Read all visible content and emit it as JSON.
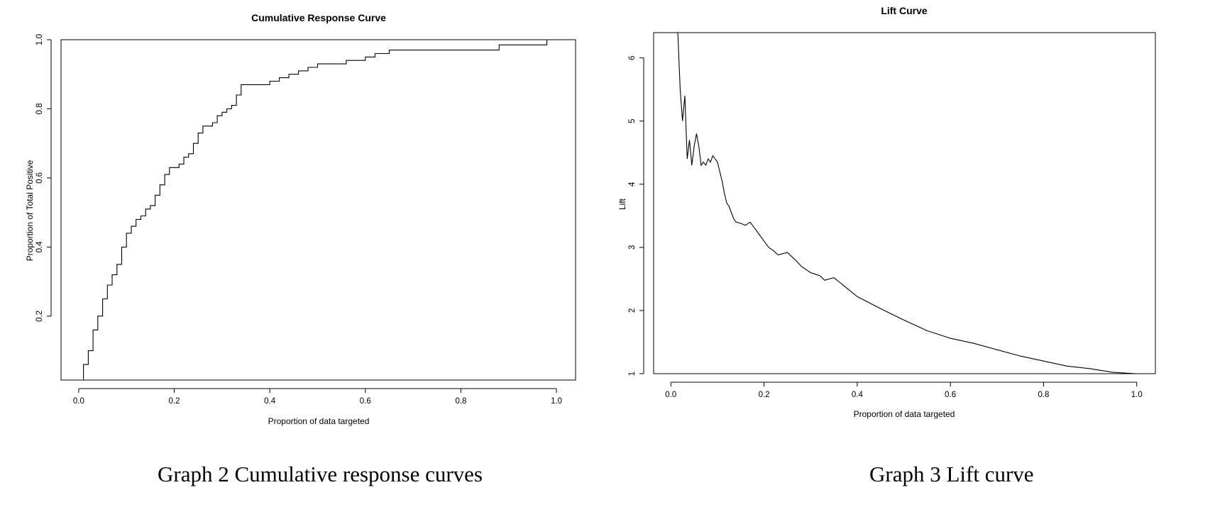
{
  "chart_data": [
    {
      "type": "line",
      "title": "Cumulative Response Curve",
      "xlabel": "Proportion of data targeted",
      "ylabel": "Proportion of Total Positive",
      "xlim": [
        -0.037,
        1.04
      ],
      "ylim": [
        0.015,
        1.0
      ],
      "xticks": [
        "0.0",
        "0.2",
        "0.4",
        "0.6",
        "0.8",
        "1.0"
      ],
      "yticks": [
        "0.2",
        "0.4",
        "0.6",
        "0.8",
        "1.0"
      ],
      "grid": false,
      "step": true,
      "series": [
        {
          "x": [
            0.0,
            0.01,
            0.02,
            0.03,
            0.04,
            0.05,
            0.06,
            0.07,
            0.08,
            0.09,
            0.1,
            0.11,
            0.12,
            0.13,
            0.14,
            0.15,
            0.16,
            0.17,
            0.18,
            0.19,
            0.2,
            0.21,
            0.22,
            0.23,
            0.24,
            0.25,
            0.26,
            0.27,
            0.28,
            0.29,
            0.3,
            0.31,
            0.32,
            0.33,
            0.34,
            0.35,
            0.36,
            0.38,
            0.4,
            0.42,
            0.44,
            0.46,
            0.48,
            0.5,
            0.52,
            0.54,
            0.56,
            0.58,
            0.6,
            0.62,
            0.65,
            0.7,
            0.75,
            0.8,
            0.85,
            0.88,
            0.9,
            0.95,
            0.98,
            1.0
          ],
          "values": [
            0.015,
            0.06,
            0.1,
            0.16,
            0.2,
            0.25,
            0.29,
            0.32,
            0.35,
            0.4,
            0.44,
            0.46,
            0.48,
            0.49,
            0.51,
            0.52,
            0.55,
            0.58,
            0.61,
            0.63,
            0.63,
            0.64,
            0.66,
            0.67,
            0.7,
            0.73,
            0.75,
            0.75,
            0.76,
            0.78,
            0.79,
            0.8,
            0.81,
            0.84,
            0.87,
            0.87,
            0.87,
            0.87,
            0.88,
            0.89,
            0.9,
            0.91,
            0.92,
            0.93,
            0.93,
            0.93,
            0.94,
            0.94,
            0.95,
            0.96,
            0.97,
            0.97,
            0.97,
            0.97,
            0.97,
            0.985,
            0.985,
            0.985,
            1.0,
            1.0
          ]
        }
      ]
    },
    {
      "type": "line",
      "title": "Lift Curve",
      "xlabel": "Proportion of data targeted",
      "ylabel": "Lift",
      "xlim": [
        -0.037,
        1.04
      ],
      "ylim": [
        1.0,
        6.4
      ],
      "xticks": [
        "0.0",
        "0.2",
        "0.4",
        "0.6",
        "0.8",
        "1.0"
      ],
      "yticks": [
        "1",
        "2",
        "3",
        "4",
        "5",
        "6"
      ],
      "grid": false,
      "step": false,
      "series": [
        {
          "x": [
            0.015,
            0.02,
            0.025,
            0.03,
            0.035,
            0.04,
            0.045,
            0.05,
            0.055,
            0.06,
            0.065,
            0.07,
            0.075,
            0.08,
            0.085,
            0.09,
            0.095,
            0.1,
            0.105,
            0.11,
            0.115,
            0.12,
            0.125,
            0.13,
            0.135,
            0.14,
            0.15,
            0.16,
            0.17,
            0.18,
            0.19,
            0.2,
            0.21,
            0.22,
            0.23,
            0.24,
            0.25,
            0.26,
            0.27,
            0.28,
            0.3,
            0.32,
            0.33,
            0.34,
            0.35,
            0.37,
            0.4,
            0.45,
            0.5,
            0.55,
            0.6,
            0.65,
            0.7,
            0.75,
            0.8,
            0.85,
            0.9,
            0.95,
            1.0
          ],
          "values": [
            6.4,
            5.5,
            5.0,
            5.4,
            4.4,
            4.7,
            4.3,
            4.6,
            4.8,
            4.6,
            4.3,
            4.35,
            4.3,
            4.4,
            4.35,
            4.45,
            4.4,
            4.35,
            4.2,
            4.05,
            3.85,
            3.7,
            3.65,
            3.55,
            3.45,
            3.4,
            3.38,
            3.35,
            3.4,
            3.3,
            3.2,
            3.1,
            3.0,
            2.95,
            2.88,
            2.9,
            2.92,
            2.85,
            2.78,
            2.7,
            2.6,
            2.55,
            2.48,
            2.5,
            2.52,
            2.4,
            2.22,
            2.03,
            1.85,
            1.68,
            1.56,
            1.48,
            1.38,
            1.28,
            1.2,
            1.12,
            1.08,
            1.02,
            1.0
          ]
        }
      ]
    }
  ],
  "captions": {
    "left": "Graph 2 Cumulative response curves",
    "right": "Graph 3 Lift curve"
  }
}
